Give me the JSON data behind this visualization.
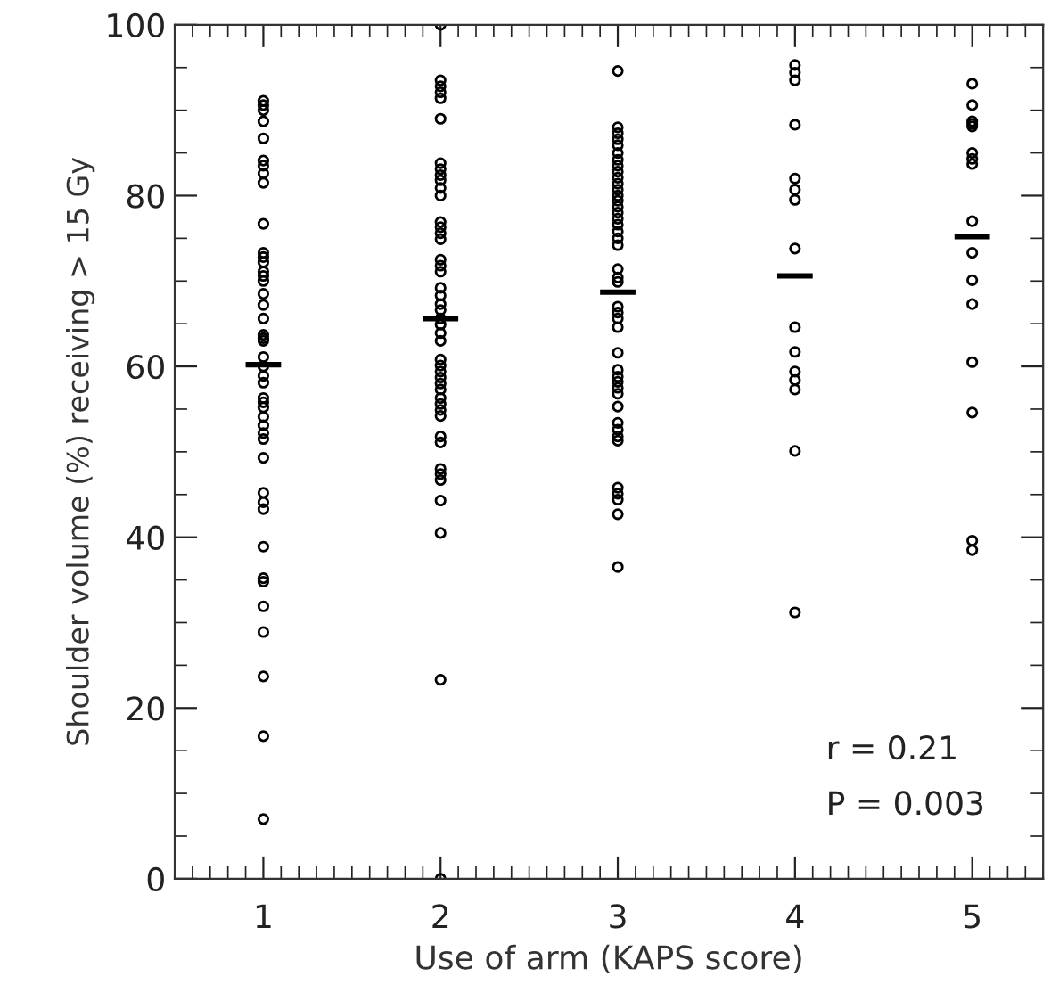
{
  "chart_data": {
    "type": "scatter",
    "xlabel": "Use of arm (KAPS score)",
    "ylabel": "Shoulder volume (%) receiving > 15 Gy",
    "xlim": [
      0.5,
      5.4
    ],
    "xticks": [
      1,
      2,
      3,
      4,
      5
    ],
    "ylim": [
      0,
      100
    ],
    "yticks": [
      0,
      20,
      40,
      60,
      80,
      100
    ],
    "grid": false,
    "annotations": [
      "r = 0.21",
      "P = 0.003"
    ],
    "series": [
      {
        "color": "#000000",
        "marker": "circle",
        "x": [
          1,
          1,
          1,
          1,
          1,
          1,
          1,
          1,
          1,
          1,
          1,
          1,
          1,
          1,
          1,
          1,
          1,
          1,
          1,
          1,
          1,
          1,
          1,
          1,
          1,
          1,
          1,
          1,
          1,
          1,
          1,
          1,
          1,
          1,
          1,
          1,
          1,
          1,
          1,
          1,
          1,
          1,
          1,
          1,
          1,
          2,
          2,
          2,
          2,
          2,
          2,
          2,
          2,
          2,
          2,
          2,
          2,
          2,
          2,
          2,
          2,
          2,
          2,
          2,
          2,
          2,
          2,
          2,
          2,
          2,
          2,
          2,
          2,
          2,
          2,
          2,
          2,
          2,
          2,
          2,
          2,
          2,
          2,
          2,
          2,
          2,
          2,
          2,
          2,
          2,
          2,
          3,
          3,
          3,
          3,
          3,
          3,
          3,
          3,
          3,
          3,
          3,
          3,
          3,
          3,
          3,
          3,
          3,
          3,
          3,
          3,
          3,
          3,
          3,
          3,
          3,
          3,
          3,
          3,
          3,
          3,
          3,
          3,
          3,
          3,
          3,
          3,
          3,
          3,
          3,
          3,
          3,
          3,
          3,
          3,
          4,
          4,
          4,
          4,
          4,
          4,
          4,
          4,
          4,
          4,
          4,
          4,
          4,
          4,
          4,
          5,
          5,
          5,
          5,
          5,
          5,
          5,
          5,
          5,
          5,
          5,
          5,
          5,
          5,
          5,
          5
        ],
        "values": [
          91.1,
          90.6,
          90.0,
          88.7,
          86.7,
          84.1,
          83.5,
          82.6,
          81.5,
          76.7,
          73.3,
          72.8,
          72.2,
          71.1,
          70.6,
          70.0,
          68.5,
          67.2,
          65.6,
          63.7,
          63.3,
          63.0,
          61.1,
          60.0,
          58.9,
          58.1,
          56.3,
          55.8,
          55.2,
          54.1,
          53.1,
          52.2,
          51.5,
          49.3,
          45.2,
          44.1,
          43.3,
          38.9,
          35.2,
          34.8,
          31.9,
          28.9,
          23.7,
          16.7,
          7.0,
          100,
          93.5,
          92.8,
          92.1,
          91.4,
          89.0,
          83.8,
          83.1,
          82.4,
          81.8,
          80.9,
          80.0,
          76.9,
          76.3,
          75.6,
          74.9,
          72.5,
          71.8,
          71.1,
          69.2,
          68.3,
          67.3,
          66.6,
          65.6,
          64.9,
          63.9,
          63.0,
          60.8,
          60.1,
          59.4,
          58.7,
          58.0,
          57.3,
          56.3,
          55.6,
          54.9,
          54.2,
          51.8,
          51.1,
          48.0,
          47.4,
          46.7,
          44.3,
          40.5,
          23.3,
          0,
          94.6,
          88.0,
          87.3,
          86.6,
          85.9,
          85.0,
          84.2,
          83.5,
          82.8,
          82.1,
          81.4,
          80.7,
          80.0,
          79.4,
          78.7,
          78.0,
          77.3,
          76.6,
          75.8,
          75.0,
          74.2,
          71.4,
          70.4,
          69.9,
          67.0,
          66.3,
          65.6,
          64.6,
          61.6,
          59.6,
          58.8,
          58.2,
          57.5,
          56.8,
          55.3,
          53.4,
          52.6,
          51.8,
          51.3,
          45.8,
          45.1,
          44.4,
          42.7,
          36.5,
          95.3,
          94.4,
          93.5,
          88.3,
          82.0,
          80.7,
          79.5,
          73.8,
          64.6,
          61.7,
          59.4,
          58.4,
          57.3,
          50.1,
          31.2,
          93.1,
          90.6,
          88.7,
          88.4,
          88.1,
          85.0,
          84.3,
          83.7,
          77.0,
          73.3,
          70.1,
          67.3,
          60.5,
          54.6,
          39.6,
          38.5
        ]
      },
      {
        "type": "line",
        "color": "#000000",
        "marker": "none",
        "line_style": "solid",
        "x": [
          0.9,
          1.1
        ],
        "values": [
          60.2,
          60.2
        ]
      },
      {
        "type": "line",
        "color": "#000000",
        "marker": "none",
        "line_style": "solid",
        "x": [
          1.9,
          2.1
        ],
        "values": [
          65.6,
          65.6
        ]
      },
      {
        "type": "line",
        "color": "#000000",
        "marker": "none",
        "line_style": "solid",
        "x": [
          2.9,
          3.1
        ],
        "values": [
          68.7,
          68.7
        ]
      },
      {
        "type": "line",
        "color": "#000000",
        "marker": "none",
        "line_style": "solid",
        "x": [
          3.9,
          4.1
        ],
        "values": [
          70.6,
          70.6
        ]
      },
      {
        "type": "line",
        "color": "#000000",
        "marker": "none",
        "line_style": "solid",
        "x": [
          4.9,
          5.1
        ],
        "values": [
          75.2,
          75.2
        ]
      }
    ]
  }
}
